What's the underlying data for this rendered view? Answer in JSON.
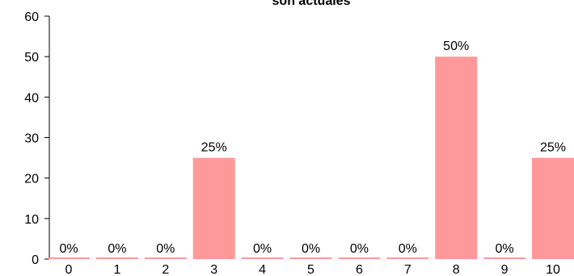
{
  "chart_data": {
    "type": "bar",
    "title": "son actuales",
    "categories": [
      "0",
      "1",
      "2",
      "3",
      "4",
      "5",
      "6",
      "7",
      "8",
      "9",
      "10"
    ],
    "values": [
      0,
      0,
      0,
      25,
      0,
      0,
      0,
      0,
      50,
      0,
      25
    ],
    "data_labels": [
      "0%",
      "0%",
      "0%",
      "25%",
      "0%",
      "0%",
      "0%",
      "0%",
      "50%",
      "0%",
      "25%"
    ],
    "yticks": [
      "0",
      "10",
      "20",
      "30",
      "40",
      "50",
      "60"
    ],
    "ylim": [
      0,
      60
    ],
    "xlabel": "",
    "ylabel": "",
    "grid": false,
    "colors": {
      "bar": "#ff9999",
      "axis": "#000000"
    }
  }
}
